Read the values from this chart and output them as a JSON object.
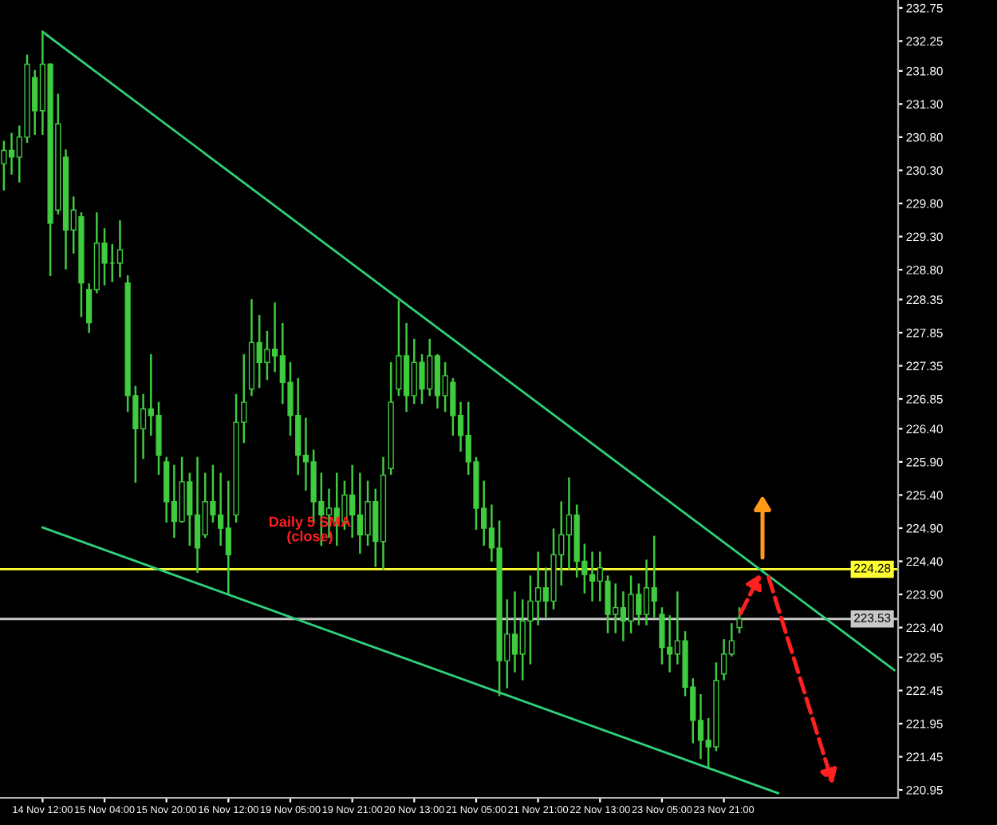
{
  "chart_data": {
    "type": "candlestick",
    "categories": [
      null,
      null,
      null,
      null,
      null,
      "14 Nov 12:00",
      null,
      null,
      null,
      null,
      null,
      null,
      null,
      "15 Nov 04:00",
      null,
      null,
      null,
      null,
      null,
      null,
      null,
      "15 Nov 20:00",
      null,
      null,
      null,
      null,
      null,
      null,
      null,
      "16 Nov 12:00",
      null,
      null,
      null,
      null,
      null,
      null,
      null,
      "19 Nov 05:00",
      null,
      null,
      null,
      null,
      null,
      null,
      null,
      "19 Nov 21:00",
      null,
      null,
      null,
      null,
      null,
      null,
      null,
      "20 Nov 13:00",
      null,
      null,
      null,
      null,
      null,
      null,
      null,
      "21 Nov 05:00",
      null,
      null,
      null,
      null,
      null,
      null,
      null,
      "21 Nov 21:00",
      null,
      null,
      null,
      null,
      null,
      null,
      null,
      "22 Nov 13:00",
      null,
      null,
      null,
      null,
      null,
      null,
      null,
      "23 Nov 05:00",
      null,
      null,
      null,
      null,
      null,
      null,
      null,
      "23 Nov 21:00",
      null,
      null,
      null,
      null,
      null,
      null,
      null,
      null,
      null,
      null,
      null,
      null,
      null,
      null,
      null,
      null,
      null,
      null,
      null,
      null,
      null,
      null
    ],
    "color": "#3fcc3f",
    "ohlc": [
      [
        230.4,
        230.73,
        230.01,
        230.6
      ],
      [
        230.6,
        230.85,
        230.25,
        230.5
      ],
      [
        230.5,
        230.96,
        230.13,
        230.8
      ],
      [
        230.8,
        232.03,
        230.73,
        231.9
      ],
      [
        231.7,
        231.8,
        230.85,
        231.2
      ],
      [
        231.2,
        232.39,
        230.85,
        231.9
      ],
      [
        231.9,
        231.9,
        228.72,
        229.5
      ],
      [
        229.7,
        231.44,
        229.65,
        231.0
      ],
      [
        230.5,
        230.6,
        228.82,
        229.4
      ],
      [
        229.4,
        229.89,
        229.06,
        229.7
      ],
      [
        229.6,
        229.65,
        228.1,
        228.6
      ],
      [
        228.5,
        228.58,
        227.86,
        228.0
      ],
      [
        228.5,
        229.65,
        228.46,
        229.2
      ],
      [
        229.2,
        229.41,
        228.58,
        228.9
      ],
      [
        228.9,
        229.17,
        228.63,
        228.9
      ],
      [
        228.9,
        229.53,
        228.7,
        229.1
      ],
      [
        228.6,
        228.7,
        226.67,
        226.9
      ],
      [
        226.9,
        227.03,
        225.6,
        226.4
      ],
      [
        226.4,
        226.91,
        225.96,
        226.7
      ],
      [
        226.7,
        227.51,
        226.31,
        226.6
      ],
      [
        226.6,
        226.79,
        225.72,
        226.0
      ],
      [
        225.9,
        225.96,
        225.0,
        225.3
      ],
      [
        225.3,
        225.84,
        224.77,
        225.0
      ],
      [
        225.0,
        225.96,
        225.0,
        225.6
      ],
      [
        225.6,
        225.72,
        224.65,
        225.1
      ],
      [
        225.1,
        225.96,
        224.24,
        224.6
      ],
      [
        224.8,
        225.72,
        224.77,
        225.3
      ],
      [
        225.3,
        225.84,
        225.0,
        225.1
      ],
      [
        225.1,
        225.72,
        224.65,
        224.9
      ],
      [
        224.9,
        225.6,
        223.93,
        224.5
      ],
      [
        225.1,
        226.91,
        225.0,
        226.5
      ],
      [
        226.5,
        227.51,
        226.2,
        226.8
      ],
      [
        227.0,
        228.34,
        226.91,
        227.7
      ],
      [
        227.7,
        228.1,
        227.03,
        227.4
      ],
      [
        227.4,
        227.86,
        227.15,
        227.6
      ],
      [
        227.6,
        228.29,
        227.27,
        227.5
      ],
      [
        227.5,
        227.98,
        226.79,
        227.1
      ],
      [
        227.1,
        227.39,
        226.31,
        226.6
      ],
      [
        226.6,
        227.15,
        225.72,
        226.0
      ],
      [
        226.0,
        226.55,
        225.48,
        225.9
      ],
      [
        225.9,
        226.07,
        225.0,
        225.3
      ],
      [
        225.3,
        225.72,
        224.65,
        225.1
      ],
      [
        225.1,
        225.48,
        224.77,
        225.2
      ],
      [
        225.2,
        225.72,
        224.65,
        225.0
      ],
      [
        225.0,
        225.6,
        224.89,
        225.4
      ],
      [
        225.4,
        225.84,
        224.77,
        225.1
      ],
      [
        225.1,
        225.72,
        224.53,
        224.8
      ],
      [
        224.8,
        225.6,
        224.65,
        225.3
      ],
      [
        225.3,
        225.48,
        224.33,
        224.7
      ],
      [
        224.7,
        225.96,
        224.29,
        225.7
      ],
      [
        225.8,
        227.39,
        225.72,
        226.8
      ],
      [
        227.0,
        228.32,
        226.91,
        227.5
      ],
      [
        227.5,
        227.98,
        226.67,
        226.9
      ],
      [
        226.9,
        227.74,
        226.79,
        227.4
      ],
      [
        227.4,
        227.51,
        226.79,
        227.0
      ],
      [
        227.0,
        227.74,
        226.91,
        227.5
      ],
      [
        227.5,
        227.51,
        226.72,
        226.9
      ],
      [
        226.9,
        227.39,
        226.67,
        227.2
      ],
      [
        227.1,
        227.15,
        226.31,
        226.6
      ],
      [
        226.6,
        226.79,
        226.07,
        226.3
      ],
      [
        226.3,
        226.79,
        225.72,
        225.9
      ],
      [
        225.9,
        225.96,
        224.89,
        225.2
      ],
      [
        225.2,
        225.6,
        224.65,
        224.9
      ],
      [
        224.9,
        225.24,
        224.41,
        224.6
      ],
      [
        224.6,
        225.0,
        222.38,
        222.9
      ],
      [
        222.9,
        223.81,
        222.5,
        223.3
      ],
      [
        223.3,
        223.93,
        222.74,
        223.0
      ],
      [
        223.0,
        223.81,
        222.62,
        223.5
      ],
      [
        223.5,
        224.17,
        222.86,
        223.8
      ],
      [
        223.8,
        224.53,
        223.45,
        224.0
      ],
      [
        224.0,
        224.29,
        223.57,
        223.8
      ],
      [
        223.8,
        224.88,
        223.69,
        224.5
      ],
      [
        224.5,
        225.29,
        224.05,
        224.8
      ],
      [
        224.8,
        225.65,
        224.29,
        225.1
      ],
      [
        225.1,
        225.24,
        224.17,
        224.4
      ],
      [
        224.4,
        224.65,
        223.93,
        224.2
      ],
      [
        224.2,
        224.53,
        223.81,
        224.1
      ],
      [
        224.1,
        224.53,
        223.81,
        224.3
      ],
      [
        224.1,
        224.17,
        223.33,
        223.6
      ],
      [
        223.6,
        224.05,
        223.33,
        223.7
      ],
      [
        223.7,
        223.93,
        223.21,
        223.5
      ],
      [
        223.5,
        224.17,
        223.33,
        223.9
      ],
      [
        223.9,
        224.05,
        223.45,
        223.6
      ],
      [
        223.6,
        224.41,
        223.45,
        224.0
      ],
      [
        224.0,
        224.77,
        223.57,
        223.8
      ],
      [
        223.6,
        223.69,
        222.86,
        223.1
      ],
      [
        223.1,
        223.57,
        222.74,
        223.0
      ],
      [
        223.0,
        223.93,
        222.86,
        223.2
      ],
      [
        223.2,
        223.33,
        222.38,
        222.5
      ],
      [
        222.5,
        222.62,
        221.67,
        222.0
      ],
      [
        222.0,
        222.38,
        221.43,
        221.7
      ],
      [
        221.7,
        222.02,
        221.31,
        221.6
      ],
      [
        221.6,
        222.86,
        221.55,
        222.6
      ],
      [
        222.7,
        223.21,
        222.62,
        223.0
      ],
      [
        223.0,
        223.45,
        222.98,
        223.2
      ],
      [
        223.4,
        223.69,
        223.33,
        223.53
      ],
      null,
      null,
      null,
      null,
      null,
      null,
      null,
      null,
      null,
      null,
      null,
      null,
      null,
      null,
      null,
      null,
      null,
      null,
      null,
      null
    ],
    "series": [
      {
        "type": "line",
        "color": "#2ed27a",
        "values": [
          null,
          null,
          null,
          null,
          null,
          232.39,
          null,
          null,
          null,
          null,
          null,
          null,
          null,
          null,
          null,
          null,
          null,
          null,
          null,
          null,
          null,
          null,
          null,
          null,
          null,
          null,
          null,
          null,
          null,
          null,
          null,
          null,
          null,
          null,
          null,
          null,
          null,
          null,
          null,
          null,
          null,
          null,
          null,
          null,
          null,
          null,
          null,
          null,
          null,
          null,
          null,
          null,
          null,
          null,
          null,
          null,
          null,
          null,
          null,
          null,
          null,
          null,
          null,
          null,
          null,
          null,
          null,
          null,
          null,
          null,
          null,
          null,
          null,
          null,
          null,
          null,
          null,
          null,
          null,
          null,
          null,
          null,
          null,
          null,
          null,
          null,
          null,
          null,
          null,
          null,
          null,
          null,
          null,
          null,
          null,
          null,
          null,
          null,
          null,
          null,
          null,
          null,
          null,
          null,
          null,
          null,
          null,
          null,
          null,
          null,
          null,
          null,
          null,
          null,
          null,
          222.76
        ]
      },
      {
        "type": "line",
        "color": "#2ed27a",
        "values": [
          null,
          null,
          null,
          null,
          null,
          224.91,
          null,
          null,
          null,
          null,
          null,
          null,
          null,
          null,
          null,
          null,
          null,
          null,
          null,
          null,
          null,
          null,
          null,
          null,
          null,
          null,
          null,
          null,
          null,
          null,
          null,
          null,
          null,
          null,
          null,
          null,
          null,
          null,
          null,
          null,
          null,
          null,
          null,
          null,
          null,
          null,
          null,
          null,
          null,
          null,
          null,
          null,
          null,
          null,
          null,
          null,
          null,
          null,
          null,
          null,
          null,
          null,
          null,
          null,
          null,
          null,
          null,
          null,
          null,
          null,
          null,
          null,
          null,
          null,
          null,
          null,
          null,
          null,
          null,
          null,
          null,
          null,
          null,
          null,
          null,
          null,
          null,
          null,
          null,
          null,
          null,
          null,
          null,
          null,
          null,
          null,
          null,
          null,
          null,
          null,
          220.9,
          null,
          null,
          null,
          null,
          null,
          null,
          null,
          null,
          null,
          null,
          null,
          null,
          null,
          null,
          null
        ]
      }
    ],
    "ylim": [
      220.83,
      232.87
    ],
    "yticks": [
      232.75,
      232.25,
      {
        "value": 231.8,
        "label": "231.80"
      },
      {
        "value": 231.3,
        "label": "231.30"
      },
      {
        "value": 230.8,
        "label": "230.80"
      },
      {
        "value": 230.3,
        "label": "230.30"
      },
      {
        "value": 229.8,
        "label": "229.80"
      },
      {
        "value": 229.3,
        "label": "229.30"
      },
      {
        "value": 228.8,
        "label": "228.80"
      },
      228.35,
      227.85,
      227.35,
      226.85,
      {
        "value": 226.4,
        "label": "226.40"
      },
      {
        "value": 225.9,
        "label": "225.90"
      },
      {
        "value": 225.4,
        "label": "225.40"
      },
      {
        "value": 224.9,
        "label": "224.90"
      },
      {
        "value": 224.4,
        "label": "224.40"
      },
      {
        "value": 223.9,
        "label": "223.90"
      },
      {
        "value": 223.4,
        "label": "223.40"
      },
      222.95,
      222.45,
      221.95,
      221.45,
      220.95
    ],
    "ref_lines": [
      {
        "axis": "y",
        "value": 224.28,
        "label": "224.28",
        "color": "#ffff33"
      },
      {
        "axis": "y",
        "value": 223.53,
        "label": "223.53",
        "color": "#c8c8c8"
      }
    ],
    "annotations": [
      "Daily 5 SMA\n(close)"
    ],
    "grid": false,
    "legend": false
  }
}
